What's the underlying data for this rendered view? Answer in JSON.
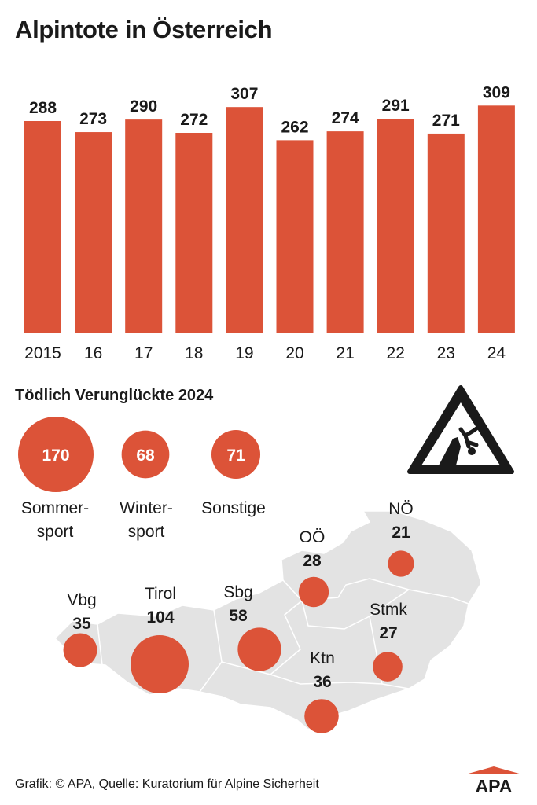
{
  "title": "Alpintote in Österreich",
  "chart_data": [
    {
      "type": "bar",
      "title": "Alpintote in Österreich",
      "categories": [
        "2015",
        "16",
        "17",
        "18",
        "19",
        "20",
        "21",
        "22",
        "23",
        "24"
      ],
      "values": [
        288,
        273,
        290,
        272,
        307,
        262,
        274,
        291,
        271,
        309
      ],
      "ylim": [
        0,
        320
      ],
      "grid": false,
      "color": "#dc5338"
    },
    {
      "type": "bubble",
      "title": "Tödlich Verunglückte 2024",
      "categories": [
        {
          "line1": "Sommer-",
          "line2": "sport",
          "value": 170
        },
        {
          "line1": "Winter-",
          "line2": "sport",
          "value": 68
        },
        {
          "line1": "Sonstige",
          "line2": "",
          "value": 71
        }
      ]
    },
    {
      "type": "map-bubble",
      "regions": [
        {
          "name": "Vbg",
          "value": 35
        },
        {
          "name": "Tirol",
          "value": 104
        },
        {
          "name": "Sbg",
          "value": 58
        },
        {
          "name": "OÖ",
          "value": 28
        },
        {
          "name": "NÖ",
          "value": 21
        },
        {
          "name": "Stmk",
          "value": 27
        },
        {
          "name": "Ktn",
          "value": 36
        }
      ]
    }
  ],
  "footer": {
    "source": "Grafik: © APA, Quelle: Kuratorium für Alpine Sicherheit",
    "logo": "APA"
  },
  "icons": {
    "warning": "falling-climber-warning-icon"
  },
  "colors": {
    "accent": "#dc5338",
    "map": "#e3e3e3",
    "text": "#1a1a1a"
  }
}
